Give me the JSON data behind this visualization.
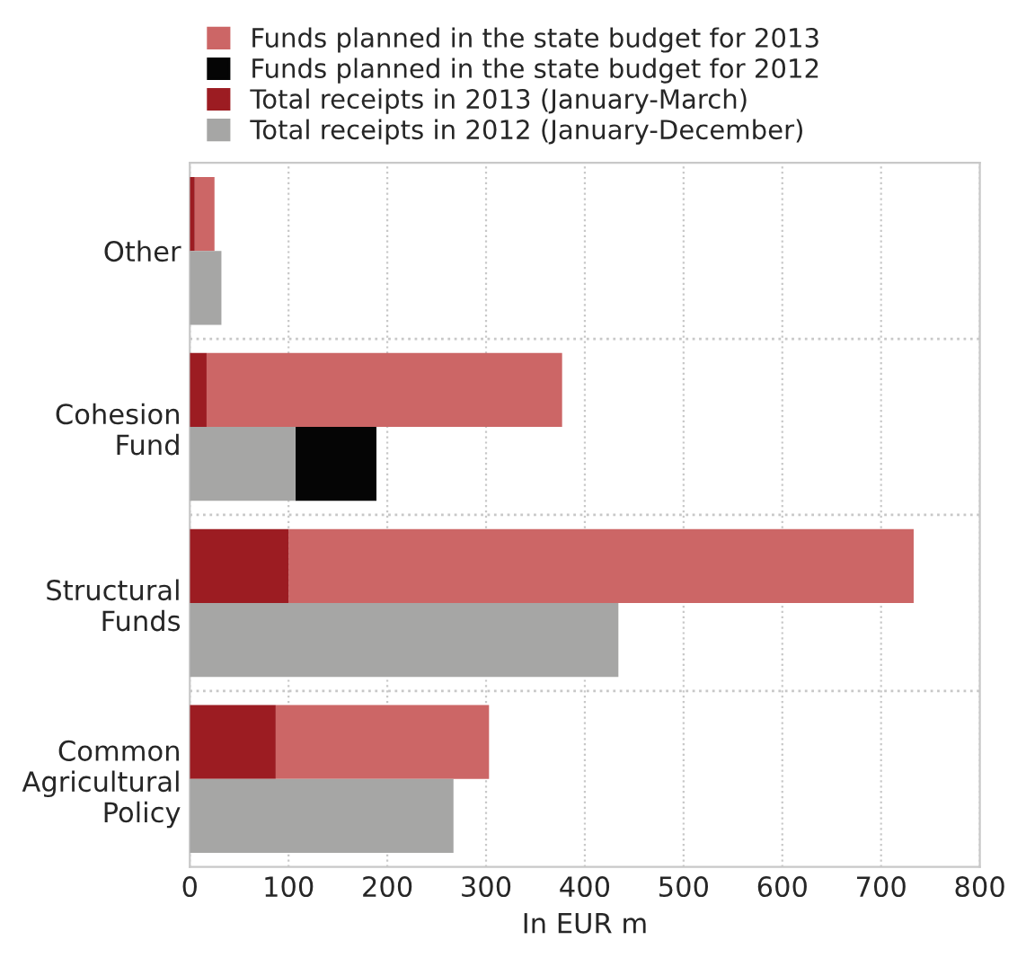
{
  "chart_data": {
    "type": "bar",
    "orientation": "horizontal",
    "categories": [
      "Other",
      "Cohesion\nFund",
      "Structural\nFunds",
      "Common\nAgricultural\nPolicy"
    ],
    "series": [
      {
        "name": "Funds planned in the state budget for 2013",
        "color": "#cc6666",
        "values": [
          20,
          360,
          633,
          216
        ],
        "base": [
          5,
          17,
          100,
          87
        ]
      },
      {
        "name": "Funds planned in the state budget for 2012",
        "color": "#050505",
        "values": [
          null,
          82,
          null,
          null
        ],
        "base": [
          null,
          107,
          null,
          null
        ]
      },
      {
        "name": "Total receipts in 2013 (January-March)",
        "color": "#9c1c22",
        "values": [
          5,
          17,
          100,
          87
        ]
      },
      {
        "name": "Total receipts in 2012 (January-December)",
        "color": "#a6a6a5",
        "values": [
          32,
          107,
          434,
          267
        ]
      }
    ],
    "xlim": [
      0,
      800
    ],
    "xticks": [
      0,
      100,
      200,
      300,
      400,
      500,
      600,
      700,
      800
    ],
    "xlabel": "In EUR m",
    "grid": true,
    "legend": "top"
  }
}
